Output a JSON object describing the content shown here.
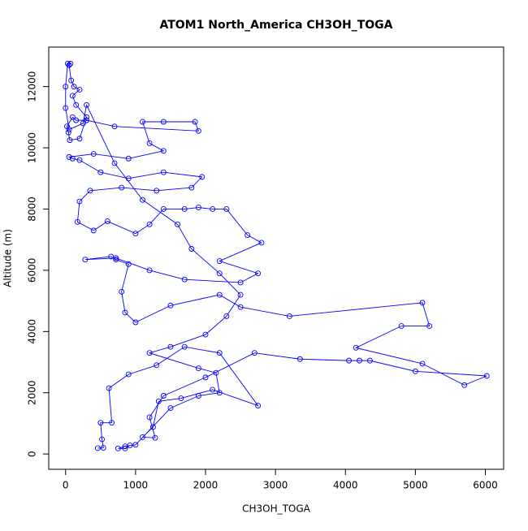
{
  "chart_data": {
    "type": "line",
    "title": "ATOM1 North_America CH3OH_TOGA",
    "xlabel": "CH3OH_TOGA",
    "ylabel": "Altitude (m)",
    "color": "#0000ff",
    "markers": true,
    "x": [
      460,
      540,
      520,
      500,
      660,
      620,
      900,
      1300,
      1700,
      2200,
      2750,
      2100,
      1650,
      1330,
      1250,
      1100,
      1280,
      1200,
      1400,
      2000,
      2700,
      3350,
      4050,
      4200,
      4350,
      5000,
      6020,
      5700,
      5100,
      4150,
      4800,
      5200,
      5100,
      3200,
      2500,
      2200,
      1500,
      1000,
      850,
      800,
      900,
      720,
      650,
      280,
      720,
      1200,
      1700,
      2500,
      2750,
      2200,
      2800,
      2600,
      2300,
      2100,
      1900,
      1700,
      1400,
      1200,
      1000,
      600,
      400,
      170,
      200,
      350,
      800,
      1300,
      1800,
      1950,
      1400,
      900,
      500,
      200,
      100,
      50,
      400,
      900,
      1400,
      1200,
      1100,
      1400,
      1850,
      1900,
      700,
      300,
      150,
      100,
      20,
      40,
      60,
      200,
      300,
      150,
      100,
      200,
      120,
      80,
      50,
      70,
      30,
      0,
      0,
      50,
      250,
      300,
      700,
      1100,
      1600,
      1800,
      2200,
      2500,
      2300,
      2000,
      1500,
      1200,
      1900,
      2150,
      2200,
      1900,
      1500,
      1000,
      850,
      750,
      850,
      920
    ],
    "y": [
      190,
      200,
      480,
      1020,
      1020,
      2150,
      2600,
      2900,
      3500,
      3300,
      1580,
      2100,
      1820,
      1720,
      880,
      550,
      530,
      1200,
      1900,
      2500,
      3300,
      3100,
      3050,
      3050,
      3050,
      2700,
      2550,
      2250,
      2950,
      3470,
      4180,
      4180,
      4940,
      4500,
      4800,
      5200,
      4850,
      4300,
      4620,
      5300,
      6200,
      6350,
      6450,
      6350,
      6400,
      6000,
      5700,
      5600,
      5900,
      6300,
      6900,
      7150,
      8000,
      8000,
      8050,
      8000,
      8000,
      7500,
      7200,
      7600,
      7300,
      7580,
      8250,
      8600,
      8700,
      8600,
      8700,
      9050,
      9200,
      9000,
      9200,
      9600,
      9650,
      9700,
      9800,
      9650,
      9900,
      10150,
      10850,
      10850,
      10850,
      10550,
      10700,
      10900,
      10900,
      11000,
      10700,
      10500,
      10250,
      10300,
      11000,
      11400,
      11700,
      11900,
      12000,
      12200,
      12700,
      12750,
      12750,
      12000,
      11300,
      10600,
      10800,
      11400,
      9500,
      8300,
      7500,
      6700,
      5900,
      5200,
      4500,
      3900,
      3500,
      3300,
      2800,
      2650,
      2000,
      1900,
      1500,
      300,
      250,
      180,
      180,
      280
    ],
    "xlim": [
      -241,
      6261
    ],
    "ylim": [
      -500,
      13290
    ],
    "xticks": [
      0,
      1000,
      2000,
      3000,
      4000,
      5000,
      6000
    ],
    "yticks": [
      0,
      2000,
      4000,
      6000,
      8000,
      10000,
      12000
    ]
  }
}
